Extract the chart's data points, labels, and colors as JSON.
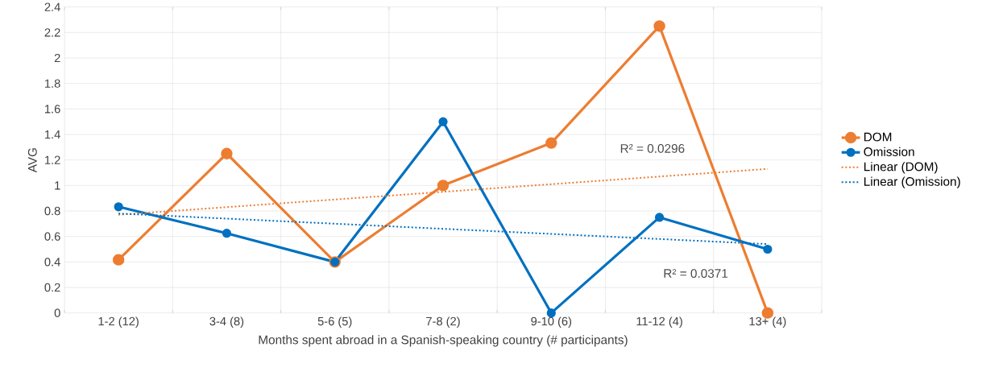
{
  "chart_data": {
    "type": "line",
    "xlabel": "Months spent abroad in a Spanish-speaking country (# participants)",
    "ylabel": "AVG",
    "categories": [
      "1-2 (12)",
      "3-4 (8)",
      "5-6 (5)",
      "7-8 (2)",
      "9-10 (6)",
      "11-12 (4)",
      "13+ (4)"
    ],
    "series": [
      {
        "name": "DOM",
        "color": "#ed7d31",
        "values": [
          0.417,
          1.25,
          0.4,
          1.0,
          1.333,
          2.25,
          0
        ]
      },
      {
        "name": "Omission",
        "color": "#0070c0",
        "values": [
          0.833,
          0.625,
          0.4,
          1.5,
          0,
          0.75,
          0.5
        ]
      },
      {
        "name": "Linear (DOM)",
        "type": "line",
        "color": "#ed7d31",
        "line_style": "dotted",
        "marker": "none",
        "values": [
          0.77,
          0.83,
          0.89,
          0.95,
          1.01,
          1.07,
          1.13
        ]
      },
      {
        "name": "Linear (Omission)",
        "type": "line",
        "color": "#0070c0",
        "line_style": "dotted",
        "marker": "none",
        "values": [
          0.78,
          0.74,
          0.7,
          0.66,
          0.62,
          0.58,
          0.54
        ]
      }
    ],
    "annotations": [
      "R² = 0.0296",
      "R² = 0.0371"
    ],
    "ylim": [
      0,
      2.4
    ],
    "yticks": [
      0,
      0.2,
      0.4,
      0.6,
      0.8,
      1,
      1.2,
      1.4,
      1.6,
      1.8,
      2,
      2.2,
      2.4
    ],
    "grid": true,
    "legend": "right",
    "marker": "circle",
    "line_style": "solid"
  }
}
